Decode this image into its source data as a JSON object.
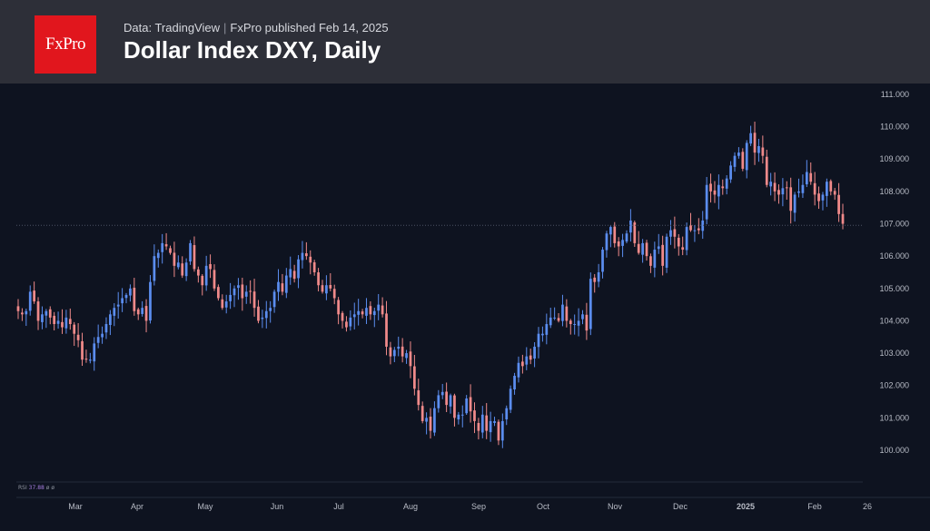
{
  "header": {
    "logo_text": "FxPro",
    "source_prefix": "Data: TradingView",
    "source_suffix": "FxPro published Feb 14, 2025",
    "title": "Dollar Index DXY, Daily"
  },
  "indicator": {
    "label": "RSI",
    "value": "37.88",
    "extra": "ø ø"
  },
  "colors": {
    "up": "#5b8def",
    "down": "#f08a8a",
    "background": "#0e1320",
    "header": "#2d2f38",
    "logo": "#e1161d",
    "axis_text": "#b8bcc6"
  },
  "chart_data": {
    "type": "candlestick",
    "title": "Dollar Index DXY, Daily",
    "x_ticks": [
      "Mar",
      "Apr",
      "May",
      "Jun",
      "Jul",
      "Aug",
      "Sep",
      "Oct",
      "Nov",
      "Dec",
      "2025",
      "Feb",
      "26"
    ],
    "y_ticks": [
      "100.000",
      "101.000",
      "102.000",
      "103.000",
      "104.000",
      "105.000",
      "106.000",
      "107.000",
      "108.000",
      "109.000",
      "110.000",
      "111.000"
    ],
    "ylim": [
      99.6,
      111.2
    ],
    "reference_line": 106.95,
    "series_close": [
      104.3,
      104.2,
      104.3,
      104.9,
      104.6,
      104.0,
      104.2,
      104.3,
      104.1,
      103.9,
      104.0,
      103.8,
      104.1,
      103.9,
      103.6,
      103.4,
      102.8,
      102.8,
      102.8,
      103.3,
      103.5,
      103.6,
      103.9,
      104.2,
      104.4,
      104.5,
      104.7,
      104.8,
      105.0,
      104.3,
      104.2,
      104.4,
      104.0,
      105.2,
      106.0,
      106.1,
      106.4,
      106.3,
      106.1,
      105.7,
      105.8,
      105.4,
      105.8,
      106.4,
      105.6,
      105.4,
      105.1,
      105.7,
      105.6,
      105.0,
      104.7,
      104.4,
      104.6,
      104.8,
      105.0,
      105.1,
      104.7,
      104.9,
      104.9,
      104.4,
      104.0,
      104.1,
      104.3,
      104.4,
      104.9,
      105.2,
      104.9,
      105.4,
      105.6,
      105.3,
      105.9,
      106.1,
      106.0,
      105.8,
      105.5,
      105.1,
      104.9,
      105.1,
      105.0,
      104.7,
      104.2,
      104.0,
      103.8,
      104.1,
      104.2,
      104.3,
      104.2,
      104.4,
      104.2,
      104.3,
      104.5,
      104.2,
      103.2,
      102.9,
      103.1,
      103.2,
      102.9,
      103.0,
      102.6,
      101.9,
      101.4,
      100.9,
      101.0,
      100.6,
      101.3,
      101.7,
      101.8,
      101.4,
      101.7,
      101.0,
      101.1,
      101.1,
      101.6,
      101.2,
      100.9,
      100.6,
      101.1,
      100.6,
      100.9,
      100.9,
      100.3,
      100.9,
      101.3,
      101.9,
      102.3,
      102.7,
      102.6,
      102.9,
      102.8,
      103.2,
      103.6,
      103.6,
      103.9,
      104.1,
      104.1,
      104.0,
      104.5,
      104.0,
      103.9,
      103.9,
      104.0,
      104.2,
      103.7,
      105.3,
      105.2,
      105.5,
      106.2,
      106.7,
      106.9,
      106.4,
      106.3,
      106.5,
      106.7,
      107.1,
      106.4,
      106.1,
      106.4,
      106.0,
      105.7,
      106.2,
      106.3,
      105.7,
      106.6,
      106.8,
      106.6,
      106.3,
      106.2,
      106.9,
      106.8,
      106.8,
      106.8,
      107.1,
      108.2,
      108.0,
      107.9,
      108.2,
      108.1,
      108.4,
      108.8,
      109.1,
      109.2,
      108.7,
      109.5,
      109.8,
      109.2,
      109.4,
      109.1,
      108.2,
      108.3,
      108.0,
      107.9,
      108.1,
      108.1,
      107.4,
      107.9,
      108.0,
      108.2,
      108.6,
      108.3,
      107.9,
      107.7,
      107.9,
      108.3,
      108.0,
      107.9,
      107.3,
      107.0
    ]
  }
}
